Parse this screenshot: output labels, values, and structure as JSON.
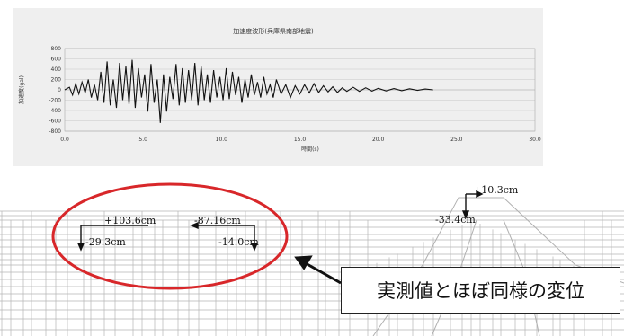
{
  "chart_data": {
    "type": "line",
    "title": "加速度波形(兵庫県南部地震)",
    "xlabel": "時間(s)",
    "ylabel": "加速度(gal)",
    "xlim": [
      0,
      30
    ],
    "ylim": [
      -800,
      800
    ],
    "x_ticks": [
      "0.0",
      "5.0",
      "10.0",
      "15.0",
      "20.0",
      "25.0",
      "30.0"
    ],
    "y_ticks": [
      "800",
      "600",
      "400",
      "200",
      "0",
      "-200",
      "-400",
      "-600",
      "-800"
    ],
    "grid": true,
    "series": [
      {
        "x": [
          0.0,
          0.3,
          0.5,
          0.7,
          0.9,
          1.1,
          1.3,
          1.5,
          1.7,
          1.9,
          2.1,
          2.3,
          2.5,
          2.7,
          2.9,
          3.1,
          3.3,
          3.5,
          3.7,
          3.9,
          4.1,
          4.3,
          4.5,
          4.7,
          4.9,
          5.1,
          5.3,
          5.5,
          5.7,
          5.9,
          6.1,
          6.3,
          6.5,
          6.7,
          6.9,
          7.1,
          7.3,
          7.5,
          7.7,
          7.9,
          8.1,
          8.3,
          8.5,
          8.7,
          8.9,
          9.1,
          9.3,
          9.5,
          9.7,
          9.9,
          10.1,
          10.3,
          10.5,
          10.7,
          10.9,
          11.1,
          11.3,
          11.5,
          11.7,
          11.9,
          12.1,
          12.3,
          12.5,
          12.7,
          12.9,
          13.1,
          13.3,
          13.5,
          13.8,
          14.1,
          14.4,
          14.7,
          15.0,
          15.3,
          15.6,
          15.9,
          16.2,
          16.5,
          16.8,
          17.1,
          17.4,
          17.7,
          18.0,
          18.4,
          18.8,
          19.2,
          19.6,
          20.0,
          20.5,
          21.0,
          21.5,
          22.0,
          22.5,
          23.0,
          23.5
        ],
        "y": [
          0,
          50,
          -100,
          120,
          -80,
          150,
          -60,
          200,
          -150,
          100,
          -200,
          350,
          -250,
          550,
          -300,
          200,
          -350,
          520,
          -200,
          450,
          -280,
          580,
          -350,
          420,
          -150,
          300,
          -420,
          500,
          -250,
          200,
          -640,
          300,
          -420,
          250,
          -180,
          500,
          -300,
          420,
          -250,
          380,
          -200,
          520,
          -300,
          450,
          -200,
          300,
          -250,
          380,
          -150,
          250,
          -200,
          420,
          -180,
          350,
          -100,
          250,
          -250,
          200,
          -150,
          300,
          -100,
          150,
          -150,
          250,
          -80,
          100,
          -150,
          200,
          -80,
          100,
          -150,
          80,
          -80,
          100,
          -60,
          120,
          -50,
          80,
          -40,
          60,
          -50,
          40,
          -30,
          50,
          -30,
          40,
          -25,
          30,
          -20,
          25,
          -15,
          20,
          -10,
          15,
          0
        ]
      }
    ]
  },
  "labels": {
    "disp_1": "+103.6cm",
    "disp_2": "-29.3cm",
    "disp_3": "-87.16cm",
    "disp_4": "-14.0cm",
    "disp_5": "+10.3cm",
    "disp_6": "-33.4cm",
    "callout": "実測値とほぼ同様の変位"
  },
  "colors": {
    "ellipse": "#d8272a",
    "mesh": "#b5b5b5",
    "line": "#111111",
    "panel": "#efefef"
  }
}
